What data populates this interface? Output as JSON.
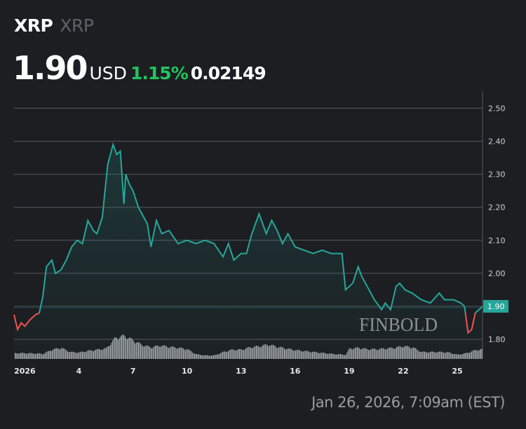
{
  "header": {
    "symbol": "XRP",
    "name": "XRP",
    "price": "1.90",
    "currency": "USD",
    "change_pct": "1.15%",
    "change_abs": "0.02149"
  },
  "timestamp": "Jan 26, 2026, 7:09am (EST)",
  "watermark": "FINBOLD",
  "colors": {
    "up": "#26a69a",
    "down": "#ef5350",
    "pct": "#22c55e",
    "background": "#1c1e22"
  },
  "chart_data": {
    "type": "area",
    "title": "",
    "xlabel": "",
    "ylabel": "",
    "x_ticks": [
      {
        "day": 1,
        "label": "2026"
      },
      {
        "day": 4,
        "label": "4"
      },
      {
        "day": 7,
        "label": "7"
      },
      {
        "day": 10,
        "label": "10"
      },
      {
        "day": 13,
        "label": "13"
      },
      {
        "day": 16,
        "label": "16"
      },
      {
        "day": 19,
        "label": "19"
      },
      {
        "day": 22,
        "label": "22"
      },
      {
        "day": 25,
        "label": "25"
      }
    ],
    "y_ticks": [
      "2.50",
      "2.40",
      "2.30",
      "2.20",
      "2.10",
      "2.00",
      "1.90",
      "1.80"
    ],
    "ylim": [
      1.75,
      2.52
    ],
    "xlim_days_jan": [
      0.4,
      26.4
    ],
    "baseline": 1.88,
    "last_price_label": "1.90",
    "grid": true,
    "series": [
      {
        "x_day_jan": [
          0.4,
          0.6,
          0.8,
          1.0,
          1.3,
          1.6,
          1.8,
          2.0,
          2.2,
          2.5,
          2.7,
          3.0,
          3.3,
          3.6,
          3.9,
          4.2,
          4.5,
          4.8,
          5.0,
          5.3,
          5.6,
          5.9,
          6.1,
          6.3,
          6.5,
          6.6,
          6.8,
          7.0,
          7.3,
          7.5,
          7.8,
          8.0,
          8.3,
          8.6,
          9.0,
          9.5,
          10.0,
          10.5,
          11.0,
          11.5,
          12.0,
          12.3,
          12.6,
          13.0,
          13.3,
          13.6,
          14.0,
          14.4,
          14.7,
          15.0,
          15.3,
          15.6,
          16.0,
          16.5,
          17.0,
          17.5,
          18.0,
          18.6,
          18.8,
          19.2,
          19.5,
          19.7,
          20.0,
          20.4,
          20.8,
          21.0,
          21.3,
          21.6,
          21.8,
          22.1,
          22.5,
          23.0,
          23.5,
          24.0,
          24.3,
          24.8,
          25.2,
          25.4,
          25.6,
          25.8,
          26.0,
          26.2,
          26.4
        ],
        "price": [
          1.875,
          1.83,
          1.85,
          1.84,
          1.86,
          1.875,
          1.88,
          1.93,
          2.02,
          2.04,
          2.0,
          2.01,
          2.04,
          2.08,
          2.1,
          2.09,
          2.16,
          2.13,
          2.12,
          2.17,
          2.33,
          2.39,
          2.36,
          2.37,
          2.21,
          2.3,
          2.27,
          2.25,
          2.2,
          2.18,
          2.15,
          2.08,
          2.16,
          2.12,
          2.13,
          2.09,
          2.1,
          2.09,
          2.1,
          2.09,
          2.05,
          2.09,
          2.04,
          2.06,
          2.06,
          2.12,
          2.18,
          2.12,
          2.16,
          2.13,
          2.09,
          2.12,
          2.08,
          2.07,
          2.06,
          2.07,
          2.06,
          2.06,
          1.95,
          1.97,
          2.02,
          1.99,
          1.96,
          1.92,
          1.89,
          1.91,
          1.89,
          1.96,
          1.97,
          1.95,
          1.94,
          1.92,
          1.91,
          1.94,
          1.92,
          1.92,
          1.91,
          1.9,
          1.82,
          1.83,
          1.88,
          1.89,
          1.9
        ]
      }
    ],
    "volume_relative": {
      "x_day_jan": [
        0.4,
        1,
        2,
        2.5,
        3,
        3.5,
        4,
        4.5,
        5,
        5.5,
        6,
        6.5,
        7,
        7.5,
        8,
        8.5,
        9,
        9.5,
        10,
        10.5,
        11,
        11.5,
        12,
        12.5,
        13,
        13.5,
        14,
        14.5,
        15,
        15.5,
        16,
        17,
        18,
        18.8,
        19,
        19.5,
        20,
        20.5,
        21,
        21.5,
        22,
        22.5,
        23,
        23.5,
        24,
        24.5,
        25,
        25.5,
        26,
        26.4
      ],
      "value": [
        25,
        25,
        22,
        40,
        48,
        30,
        28,
        35,
        40,
        45,
        90,
        100,
        80,
        60,
        50,
        58,
        52,
        48,
        42,
        20,
        15,
        15,
        30,
        40,
        40,
        50,
        55,
        62,
        52,
        45,
        38,
        30,
        22,
        18,
        45,
        48,
        42,
        42,
        45,
        48,
        55,
        50,
        30,
        30,
        30,
        28,
        18,
        25,
        38,
        42
      ]
    }
  }
}
